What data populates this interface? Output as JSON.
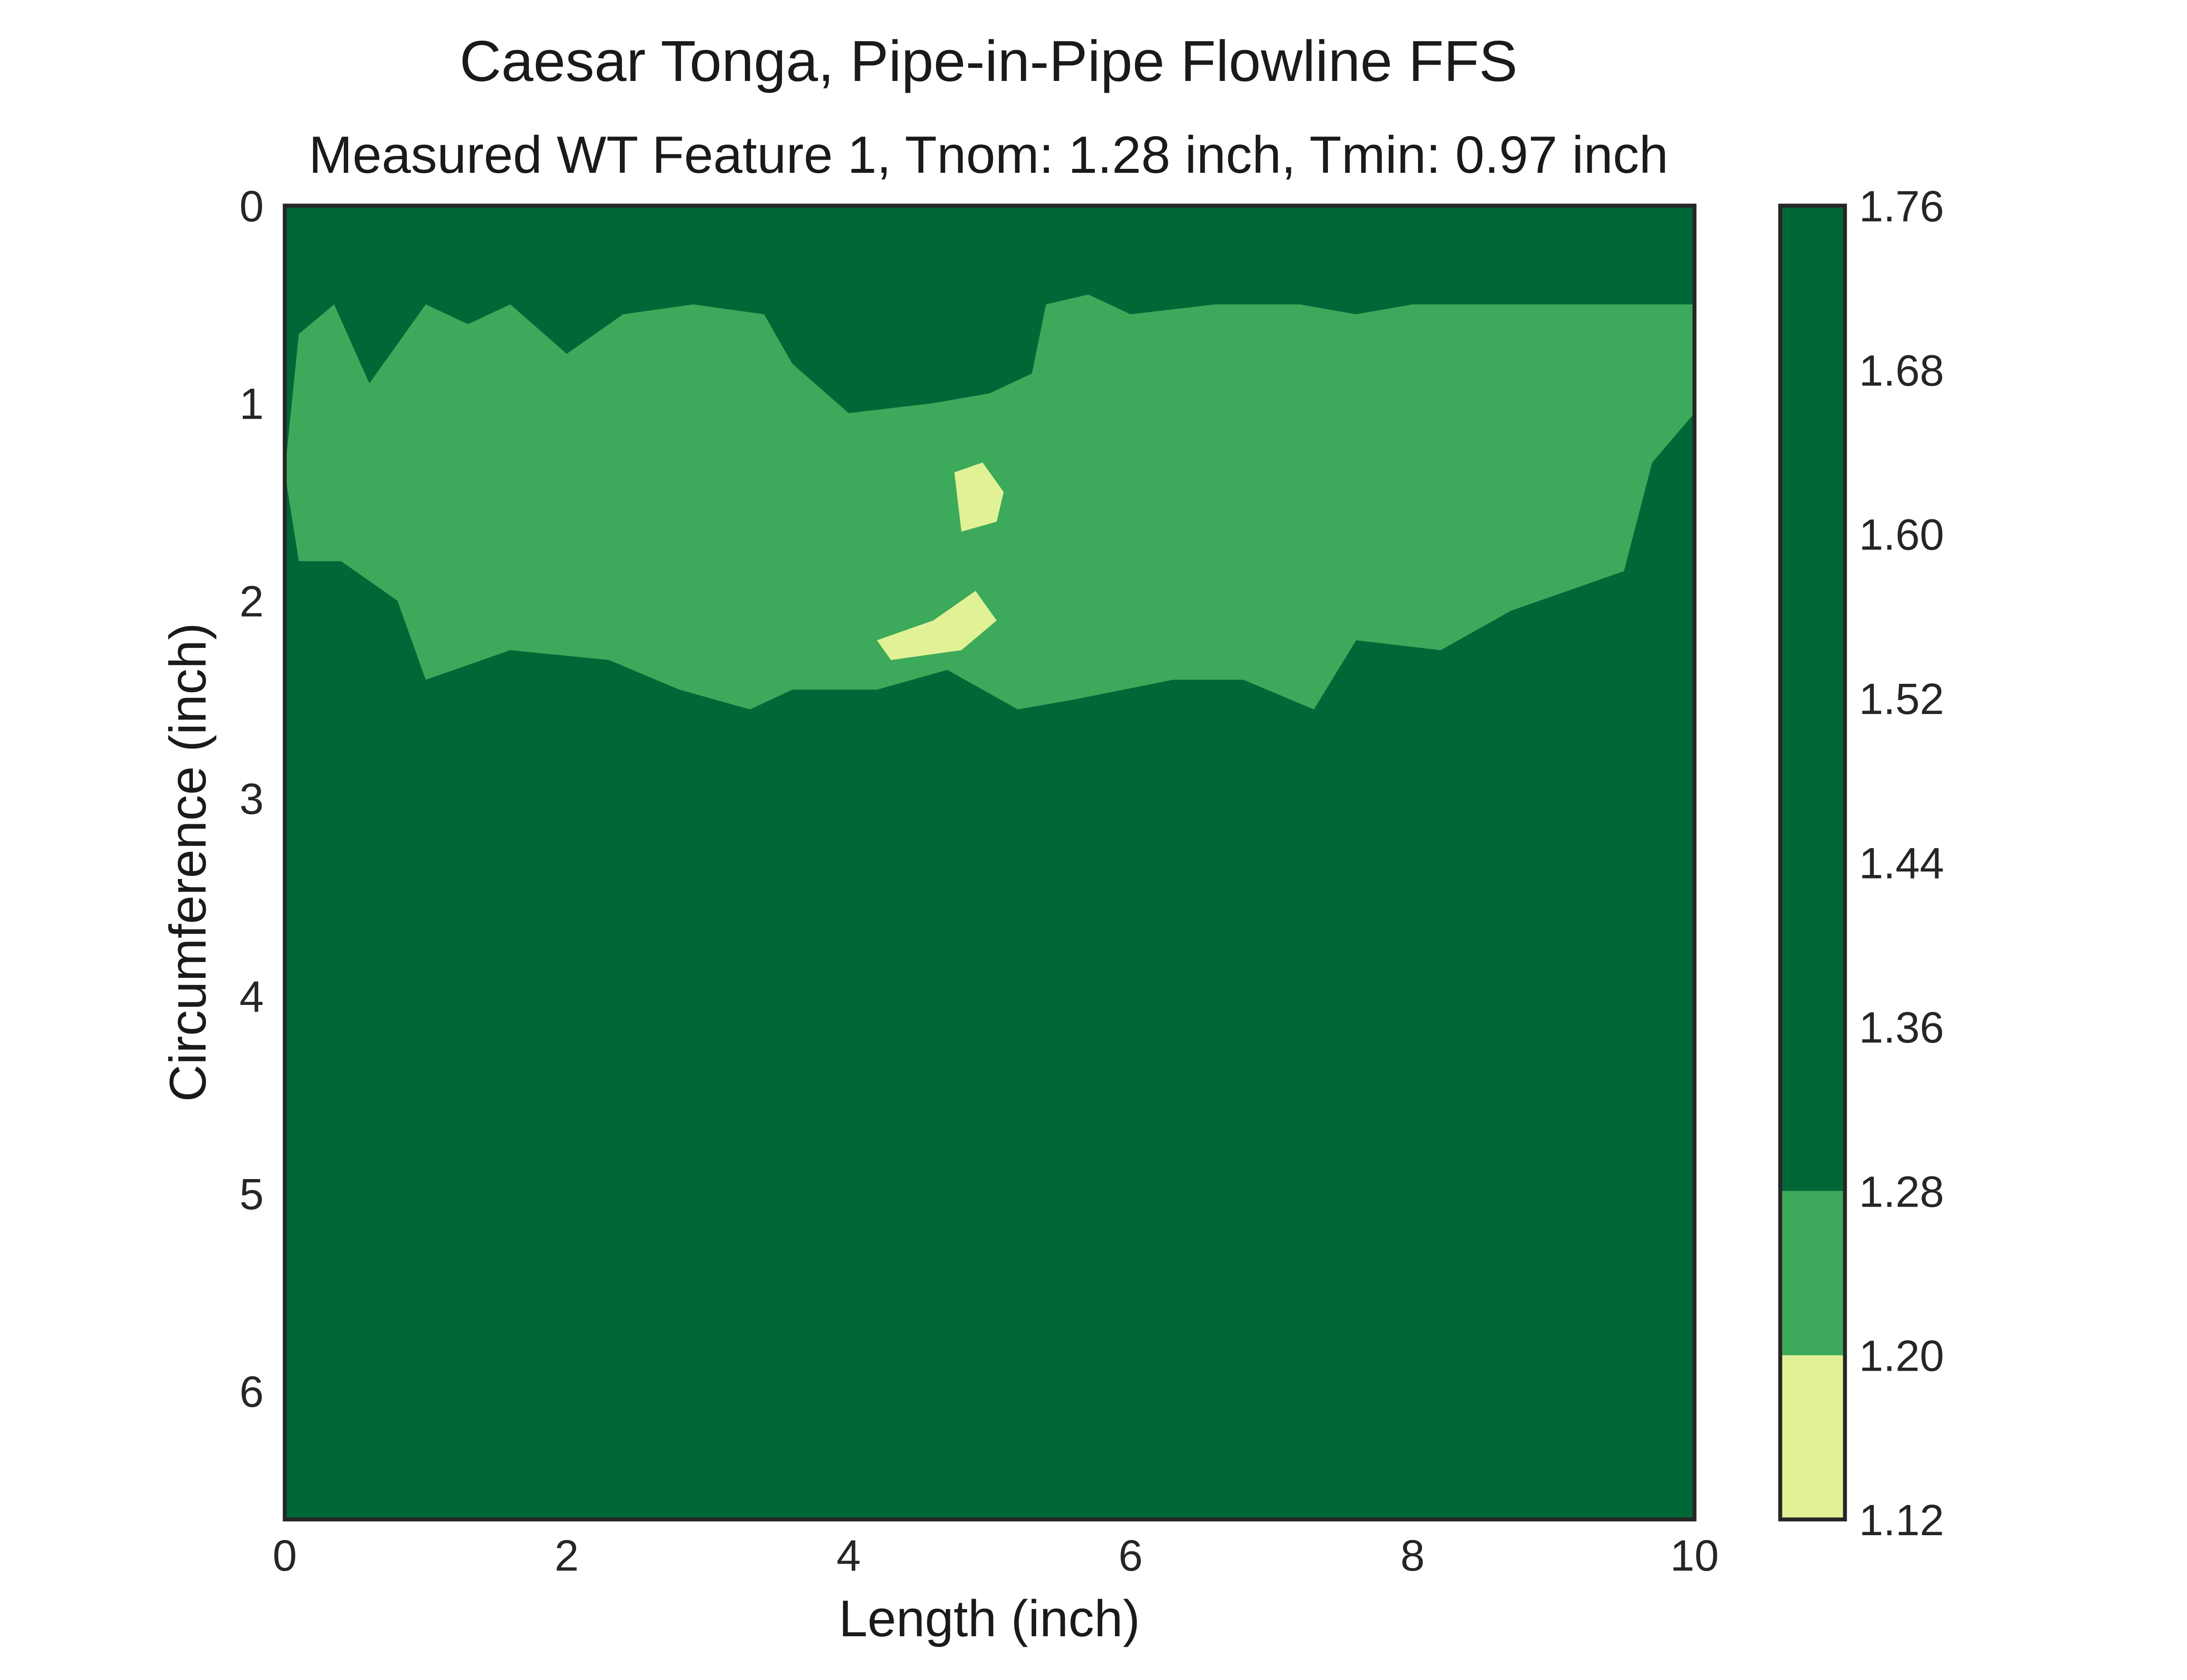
{
  "chart_data": {
    "type": "heatmap",
    "plot_kind": "filled-contour",
    "title": "Caesar Tonga, Pipe-in-Pipe Flowline FFS",
    "subtitle": "Measured WT Feature 1, Tnom: 1.28 inch, Tmin: 0.97 inch",
    "xlabel": "Length (inch)",
    "ylabel": "Circumference (inch)",
    "xlim": [
      0,
      10
    ],
    "ylim": [
      6.65,
      0
    ],
    "y_inverted": true,
    "xticks": [
      0,
      2,
      4,
      6,
      8,
      10
    ],
    "yticks": [
      0,
      1,
      2,
      3,
      4,
      5,
      6
    ],
    "grid": false,
    "colorbar": {
      "position": "right",
      "levels": [
        1.12,
        1.2,
        1.28,
        1.36,
        1.44,
        1.52,
        1.6,
        1.68,
        1.76
      ],
      "tick_labels": [
        "1.12",
        "1.20",
        "1.28",
        "1.36",
        "1.44",
        "1.52",
        "1.60",
        "1.68",
        "1.76"
      ],
      "bands": [
        {
          "from": 1.12,
          "to": 1.2,
          "color": "#e1f196"
        },
        {
          "from": 1.2,
          "to": 1.28,
          "color": "#3caa5a"
        },
        {
          "from": 1.28,
          "to": 1.76,
          "color": "#006837"
        }
      ]
    },
    "regions": [
      {
        "band": "1.20-1.28",
        "description_points": [
          [
            0.0,
            1.35
          ],
          [
            0.1,
            0.65
          ],
          [
            0.35,
            0.5
          ],
          [
            0.6,
            0.9
          ],
          [
            1.0,
            0.5
          ],
          [
            1.3,
            0.6
          ],
          [
            1.6,
            0.5
          ],
          [
            2.0,
            0.75
          ],
          [
            2.4,
            0.55
          ],
          [
            2.9,
            0.5
          ],
          [
            3.4,
            0.55
          ],
          [
            3.6,
            0.8
          ],
          [
            4.0,
            1.05
          ],
          [
            4.6,
            1.0
          ],
          [
            5.0,
            0.95
          ],
          [
            5.3,
            0.85
          ],
          [
            5.4,
            0.5
          ],
          [
            5.7,
            0.45
          ],
          [
            6.0,
            0.55
          ],
          [
            6.6,
            0.5
          ],
          [
            7.2,
            0.5
          ],
          [
            7.6,
            0.55
          ],
          [
            8.0,
            0.5
          ],
          [
            8.5,
            0.5
          ],
          [
            9.0,
            0.5
          ],
          [
            9.6,
            0.5
          ],
          [
            10.0,
            0.5
          ],
          [
            10.0,
            1.05
          ],
          [
            9.7,
            1.3
          ],
          [
            9.5,
            1.85
          ],
          [
            9.1,
            1.95
          ],
          [
            8.7,
            2.05
          ],
          [
            8.2,
            2.25
          ],
          [
            7.6,
            2.2
          ],
          [
            7.3,
            2.55
          ],
          [
            6.8,
            2.4
          ],
          [
            6.3,
            2.4
          ],
          [
            5.6,
            2.5
          ],
          [
            5.2,
            2.55
          ],
          [
            4.7,
            2.35
          ],
          [
            4.2,
            2.45
          ],
          [
            3.6,
            2.45
          ],
          [
            3.3,
            2.55
          ],
          [
            2.8,
            2.45
          ],
          [
            2.3,
            2.3
          ],
          [
            1.6,
            2.25
          ],
          [
            1.0,
            2.4
          ],
          [
            0.8,
            2.0
          ],
          [
            0.4,
            1.8
          ],
          [
            0.1,
            1.8
          ]
        ]
      },
      {
        "band": "1.12-1.20",
        "description_points": [
          [
            4.2,
            2.2
          ],
          [
            4.6,
            2.1
          ],
          [
            4.9,
            1.95
          ],
          [
            5.05,
            2.1
          ],
          [
            4.8,
            2.25
          ],
          [
            4.3,
            2.3
          ]
        ]
      },
      {
        "band": "1.12-1.20",
        "description_points": [
          [
            4.75,
            1.35
          ],
          [
            4.95,
            1.3
          ],
          [
            5.1,
            1.45
          ],
          [
            5.05,
            1.6
          ],
          [
            4.8,
            1.65
          ]
        ]
      }
    ]
  }
}
